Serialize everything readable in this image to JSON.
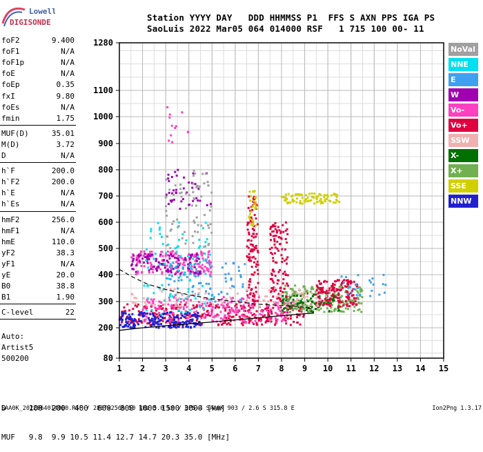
{
  "logo": {
    "top": "Lowell",
    "bottom": "DIGISONDE"
  },
  "header": {
    "line1": "Station YYYY DAY   DDD HHMMSS P1  FFS S AXN PPS IGA PS",
    "line2": "SaoLuis 2022 Mar05 064 014000 RSF   1 715 100 00- 11"
  },
  "params": [
    {
      "name": "foF2",
      "value": "9.400"
    },
    {
      "name": "foF1",
      "value": "N/A"
    },
    {
      "name": "foF1p",
      "value": "N/A"
    },
    {
      "name": "foE",
      "value": "N/A"
    },
    {
      "name": "foEp",
      "value": "0.35"
    },
    {
      "name": "fxI",
      "value": "9.80"
    },
    {
      "name": "foEs",
      "value": "N/A"
    },
    {
      "name": "fmin",
      "value": "1.75"
    },
    {
      "name": "MUF(D)",
      "value": "35.01"
    },
    {
      "name": "M(D)",
      "value": "3.72"
    },
    {
      "name": "D",
      "value": "N/A"
    },
    {
      "name": "h`F",
      "value": "200.0"
    },
    {
      "name": "h`F2",
      "value": "200.0"
    },
    {
      "name": "h`E",
      "value": "N/A"
    },
    {
      "name": "h`Es",
      "value": "N/A"
    },
    {
      "name": "hmF2",
      "value": "256.0"
    },
    {
      "name": "hmF1",
      "value": "N/A"
    },
    {
      "name": "hmE",
      "value": "110.0"
    },
    {
      "name": "yF2",
      "value": "38.3"
    },
    {
      "name": "yF1",
      "value": "N/A"
    },
    {
      "name": "yE",
      "value": "20.0"
    },
    {
      "name": "B0",
      "value": "38.8"
    },
    {
      "name": "B1",
      "value": "1.90"
    },
    {
      "name": "C-level",
      "value": "22"
    }
  ],
  "auto": [
    "Auto:",
    "Artist5",
    "500200"
  ],
  "legend": [
    {
      "label": "NoVal",
      "color": "#a0a0a0"
    },
    {
      "label": "NNE",
      "color": "#00e0f0"
    },
    {
      "label": "E",
      "color": "#40a0f0"
    },
    {
      "label": "W",
      "color": "#a000b0"
    },
    {
      "label": "Vo-",
      "color": "#ff40c0"
    },
    {
      "label": "Vo+",
      "color": "#e00040"
    },
    {
      "label": "SSW",
      "color": "#f0b0b0"
    },
    {
      "label": "X-",
      "color": "#007000"
    },
    {
      "label": "X+",
      "color": "#70b050"
    },
    {
      "label": "SSE",
      "color": "#d0d000"
    },
    {
      "label": "NNW",
      "color": "#2020d0"
    }
  ],
  "bottom_table": {
    "d_row": "D     100  200  400  600  800 1000 1500 3000 [km]",
    "muf_row": "MUF   9.8  9.9 10.5 11.4 12.7 14.7 20.3 35.0 [MHz]"
  },
  "footer": {
    "left": "SAA0K_2022064014000.RSF / 280fx256h 50 kHz 5.0 km / DPS-4 SAA0K 903 / 2.6 S 315.8 E",
    "right": "Ion2Png 1.3.17"
  },
  "chart_data": {
    "type": "scatter",
    "title": "",
    "xlabel": "",
    "ylabel": "",
    "x_ticks": [
      1,
      2,
      3,
      4,
      5,
      6,
      7,
      8,
      9,
      10,
      11,
      12,
      13,
      14,
      15
    ],
    "y_ticks": [
      80,
      200,
      300,
      400,
      500,
      600,
      700,
      800,
      900,
      1000,
      1100,
      1280
    ],
    "y_tick_labels": [
      "80",
      "200",
      "300",
      "400",
      "500",
      "600",
      "700",
      "800",
      "900",
      "1000",
      "1100",
      "1280"
    ],
    "xlim": [
      1,
      15
    ],
    "ylim": [
      80,
      1280
    ],
    "grid": true,
    "profile_curve": {
      "style": "solid",
      "x": [
        1.0,
        2.0,
        3.0,
        4.0,
        5.0,
        6.0,
        7.0,
        8.0,
        8.5,
        9.0,
        9.4
      ],
      "y": [
        190,
        200,
        208,
        215,
        222,
        230,
        238,
        246,
        250,
        254,
        256
      ]
    },
    "trace_curve": {
      "style": "dashed",
      "x": [
        1.0,
        1.6,
        2.2,
        3.0,
        4.0,
        5.0,
        6.0,
        6.5,
        7.0,
        7.5,
        8.0,
        8.5,
        9.0,
        9.4
      ],
      "y": [
        420,
        390,
        365,
        345,
        325,
        310,
        300,
        295,
        290,
        288,
        285,
        282,
        278,
        270
      ]
    },
    "echo_clusters": [
      {
        "series": "Vo+",
        "x": [
          1.0,
          9.0
        ],
        "y": [
          210,
          290
        ],
        "count": 300
      },
      {
        "series": "Vo-",
        "x": [
          2.0,
          8.5
        ],
        "y": [
          220,
          320
        ],
        "count": 220
      },
      {
        "series": "NNW",
        "x": [
          1.0,
          4.5
        ],
        "y": [
          200,
          260
        ],
        "count": 180
      },
      {
        "series": "X+",
        "x": [
          8.0,
          11.5
        ],
        "y": [
          260,
          360
        ],
        "count": 200
      },
      {
        "series": "X-",
        "x": [
          8.0,
          10.5
        ],
        "y": [
          260,
          330
        ],
        "count": 80
      },
      {
        "series": "Vo+",
        "x": [
          9.5,
          11.3
        ],
        "y": [
          280,
          380
        ],
        "count": 140
      },
      {
        "series": "Vo-",
        "x": [
          1.5,
          5.0
        ],
        "y": [
          400,
          490
        ],
        "count": 160
      },
      {
        "series": "W",
        "x": [
          1.5,
          4.5
        ],
        "y": [
          400,
          480
        ],
        "count": 110
      },
      {
        "series": "Vo+",
        "x": [
          6.5,
          7.0
        ],
        "y": [
          300,
          700
        ],
        "count": 110
      },
      {
        "series": "Vo+",
        "x": [
          7.5,
          8.3
        ],
        "y": [
          300,
          600
        ],
        "count": 110
      },
      {
        "series": "SSE",
        "x": [
          8.0,
          10.5
        ],
        "y": [
          670,
          710
        ],
        "count": 90
      },
      {
        "series": "SSE",
        "x": [
          6.6,
          6.9
        ],
        "y": [
          580,
          720
        ],
        "count": 30
      },
      {
        "series": "NNE",
        "x": [
          2.0,
          5.0
        ],
        "y": [
          250,
          600
        ],
        "count": 90
      },
      {
        "series": "E",
        "x": [
          3.0,
          6.5
        ],
        "y": [
          300,
          450
        ],
        "count": 80
      },
      {
        "series": "W",
        "x": [
          3.0,
          5.0
        ],
        "y": [
          650,
          800
        ],
        "count": 40
      },
      {
        "series": "NoVal",
        "x": [
          3.0,
          5.0
        ],
        "y": [
          500,
          800
        ],
        "count": 70
      },
      {
        "series": "Vo-",
        "x": [
          3.0,
          4.0
        ],
        "y": [
          900,
          1040
        ],
        "count": 12
      },
      {
        "series": "SSW",
        "x": [
          1.5,
          10.0
        ],
        "y": [
          280,
          350
        ],
        "count": 90
      },
      {
        "series": "E",
        "x": [
          10.5,
          12.5
        ],
        "y": [
          320,
          400
        ],
        "count": 25
      }
    ]
  }
}
